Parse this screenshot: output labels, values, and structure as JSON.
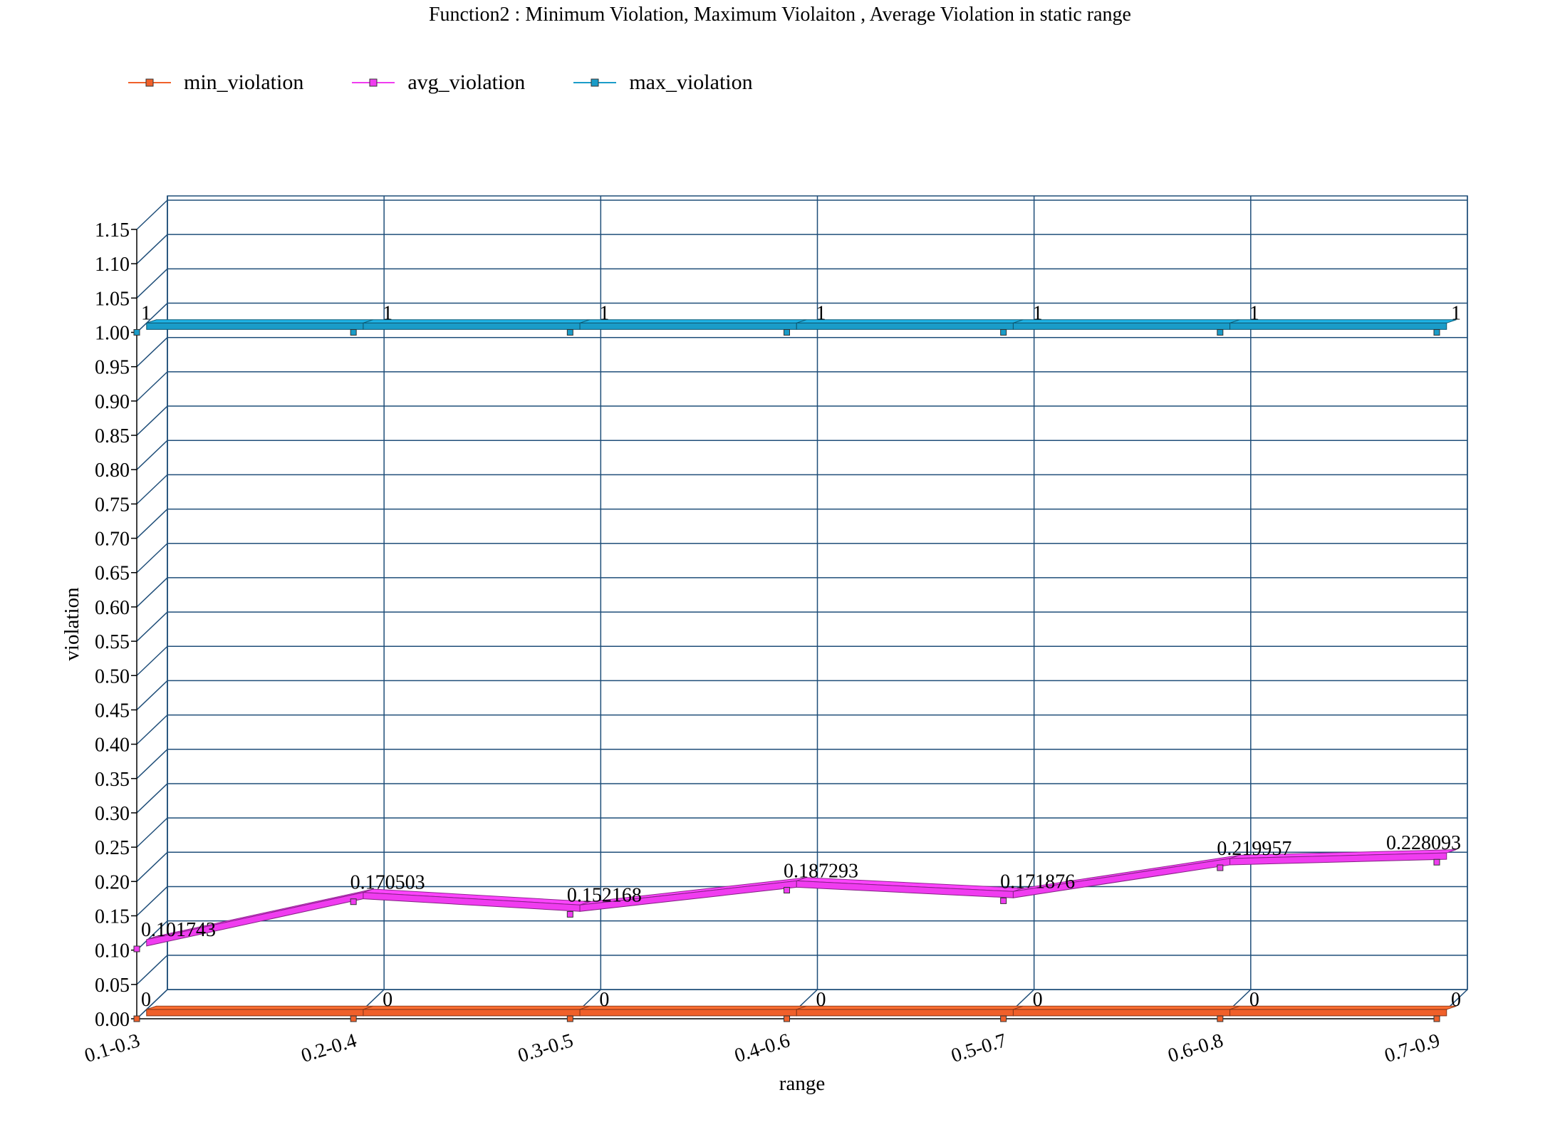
{
  "chart_data": {
    "type": "line",
    "title": "Function2 : Minimum Violation, Maximum Violaiton , Average Violation in static range",
    "xlabel": "range",
    "ylabel": "violation",
    "categories": [
      "0.1-0.3",
      "0.2-0.4",
      "0.3-0.5",
      "0.4-0.6",
      "0.5-0.7",
      "0.6-0.8",
      "0.7-0.9"
    ],
    "ylim": [
      0,
      1.15
    ],
    "yticks": [
      "0.00",
      "0.05",
      "0.10",
      "0.15",
      "0.20",
      "0.25",
      "0.30",
      "0.35",
      "0.40",
      "0.45",
      "0.50",
      "0.55",
      "0.60",
      "0.65",
      "0.70",
      "0.75",
      "0.80",
      "0.85",
      "0.90",
      "0.95",
      "1.00",
      "1.05",
      "1.10",
      "1.15"
    ],
    "grid": true,
    "legend_position": "top-left",
    "style": "3d-ribbon",
    "series": [
      {
        "name": "min_violation",
        "color": "#f0602a",
        "values": [
          0,
          0,
          0,
          0,
          0,
          0,
          0
        ],
        "labels": [
          "0",
          "0",
          "0",
          "0",
          "0",
          "0",
          "0"
        ]
      },
      {
        "name": "avg_violation",
        "color": "#f03cf0",
        "values": [
          0.101743,
          0.170503,
          0.152168,
          0.187293,
          0.171876,
          0.219957,
          0.228093
        ],
        "labels": [
          "0.101743",
          "0.170503",
          "0.152168",
          "0.187293",
          "0.171876",
          "0.219957",
          "0.228093"
        ]
      },
      {
        "name": "max_violation",
        "color": "#1a9cc8",
        "values": [
          1,
          1,
          1,
          1,
          1,
          1,
          1
        ],
        "labels": [
          "1",
          "1",
          "1",
          "1",
          "1",
          "1",
          "1"
        ]
      }
    ]
  },
  "colors": {
    "grid": "#1f4e79",
    "background": "#ffffff"
  }
}
